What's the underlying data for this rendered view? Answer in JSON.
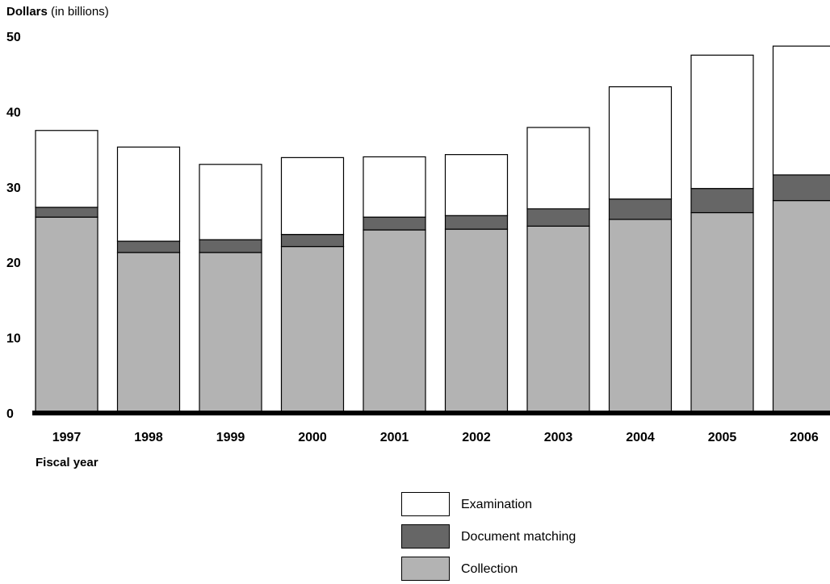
{
  "chart_data": {
    "type": "bar",
    "stacked": true,
    "title": "",
    "ylabel_bold": "Dollars",
    "ylabel_rest": " (in billions)",
    "xlabel": "Fiscal year",
    "ylim": [
      0,
      50
    ],
    "yticks": [
      "0",
      "10",
      "20",
      "30",
      "40",
      "50"
    ],
    "grid": false,
    "categories": [
      "1997",
      "1998",
      "1999",
      "2000",
      "2001",
      "2002",
      "2003",
      "2004",
      "2005",
      "2006"
    ],
    "series": [
      {
        "name": "Collection",
        "color": "#b3b3b3",
        "values": [
          26.0,
          21.3,
          21.3,
          22.1,
          24.3,
          24.4,
          24.8,
          25.7,
          26.6,
          28.2
        ]
      },
      {
        "name": "Document matching",
        "color": "#666666",
        "values": [
          1.3,
          1.5,
          1.7,
          1.6,
          1.7,
          1.8,
          2.3,
          2.7,
          3.2,
          3.4
        ]
      },
      {
        "name": "Examination",
        "color": "#ffffff",
        "values": [
          10.2,
          12.5,
          10.0,
          10.2,
          8.0,
          8.1,
          10.8,
          14.9,
          17.7,
          17.1
        ]
      }
    ],
    "legend": {
      "placement": "bottom",
      "items": [
        {
          "label": "Examination",
          "color": "#ffffff"
        },
        {
          "label": "Document matching",
          "color": "#666666"
        },
        {
          "label": "Collection",
          "color": "#b3b3b3"
        }
      ]
    }
  }
}
